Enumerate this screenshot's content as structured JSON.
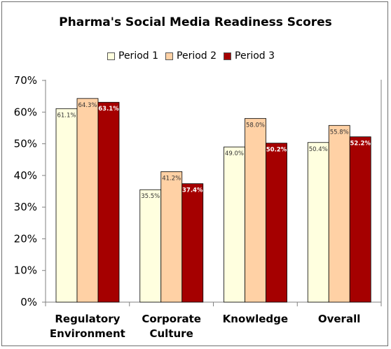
{
  "chart_data": {
    "type": "bar",
    "title": "Pharma's Social Media Readiness Scores",
    "categories": [
      [
        "Regulatory",
        "Environment"
      ],
      [
        "Corporate",
        "Culture"
      ],
      [
        "Knowledge"
      ],
      [
        "Overall"
      ]
    ],
    "series": [
      {
        "name": "Period 1",
        "color": "#ffffdf",
        "values": [
          61.1,
          35.5,
          49.0,
          50.4
        ],
        "labels": [
          "61.1%",
          "35.5%",
          "49.0%",
          "50.4%"
        ],
        "label_color": "#333333"
      },
      {
        "name": "Period 2",
        "color": "#ffd1a5",
        "values": [
          64.3,
          41.2,
          58.0,
          55.8
        ],
        "labels": [
          "64.3%",
          "41.2%",
          "58.0%",
          "55.8%"
        ],
        "label_color": "#333333"
      },
      {
        "name": "Period 3",
        "color": "#a50000",
        "values": [
          63.1,
          37.4,
          50.2,
          52.2
        ],
        "labels": [
          "63.1%",
          "37.4%",
          "50.2%",
          "52.2%"
        ],
        "label_color": "#ffffff"
      }
    ],
    "ylim": [
      0,
      70
    ],
    "yticks": [
      "0%",
      "10%",
      "20%",
      "30%",
      "40%",
      "50%",
      "60%",
      "70%"
    ],
    "ytick_values": [
      0,
      10,
      20,
      30,
      40,
      50,
      60,
      70
    ],
    "legend": "top-center",
    "grid": false
  }
}
